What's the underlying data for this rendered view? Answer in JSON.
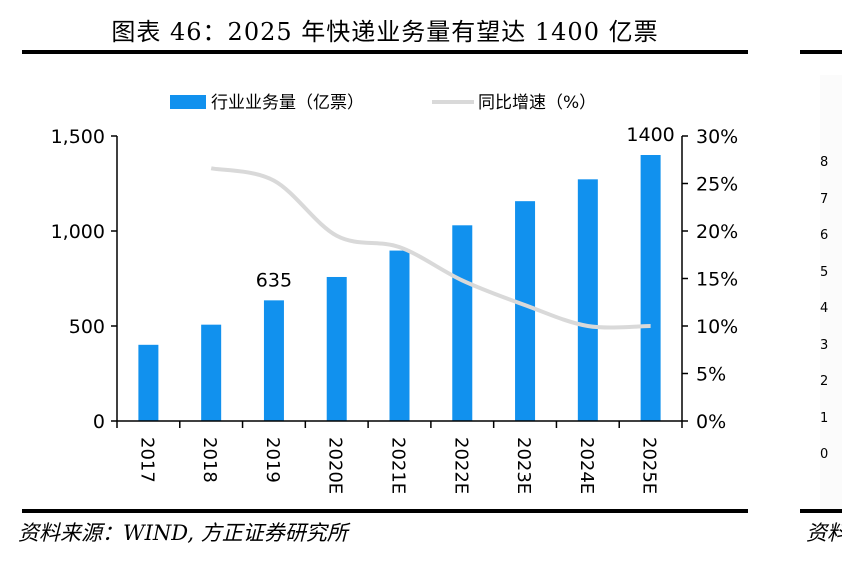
{
  "title": "图表 46：2025 年快递业务量有望达 1400 亿票",
  "source": "资料来源：WIND, 方正证券研究所",
  "neighbor_source": "资料",
  "neighbor_ticks": [
    "8",
    "7",
    "6",
    "5",
    "4",
    "3",
    "2",
    "1",
    "0"
  ],
  "colors": {
    "bar": "#1191ee",
    "line": "#d9d9d9",
    "axis": "#000000"
  },
  "chart_data": {
    "type": "bar",
    "categories": [
      "2017",
      "2018",
      "2019",
      "2020E",
      "2021E",
      "2022E",
      "2023E",
      "2024E",
      "2025E"
    ],
    "series": [
      {
        "name": "行业业务量（亿票）",
        "type": "bar",
        "axis": "left",
        "values": [
          401,
          507,
          635,
          758,
          897,
          1030,
          1157,
          1272,
          1400
        ]
      },
      {
        "name": "同比增速（%）",
        "type": "line",
        "axis": "right",
        "values": [
          null,
          26.6,
          25.3,
          19.5,
          18.3,
          14.8,
          12.2,
          10.0,
          10.0
        ]
      }
    ],
    "data_labels": [
      {
        "category": "2019",
        "text": "635"
      },
      {
        "category": "2025E",
        "text": "1400"
      }
    ],
    "ylim_left": [
      0,
      1500
    ],
    "yticks_left": [
      "0",
      "500",
      "1,000",
      "1,500"
    ],
    "ylim_right": [
      0,
      30
    ],
    "yticks_right": [
      "0%",
      "5%",
      "10%",
      "15%",
      "20%",
      "25%",
      "30%"
    ],
    "legend_position": "top",
    "grid": false
  }
}
